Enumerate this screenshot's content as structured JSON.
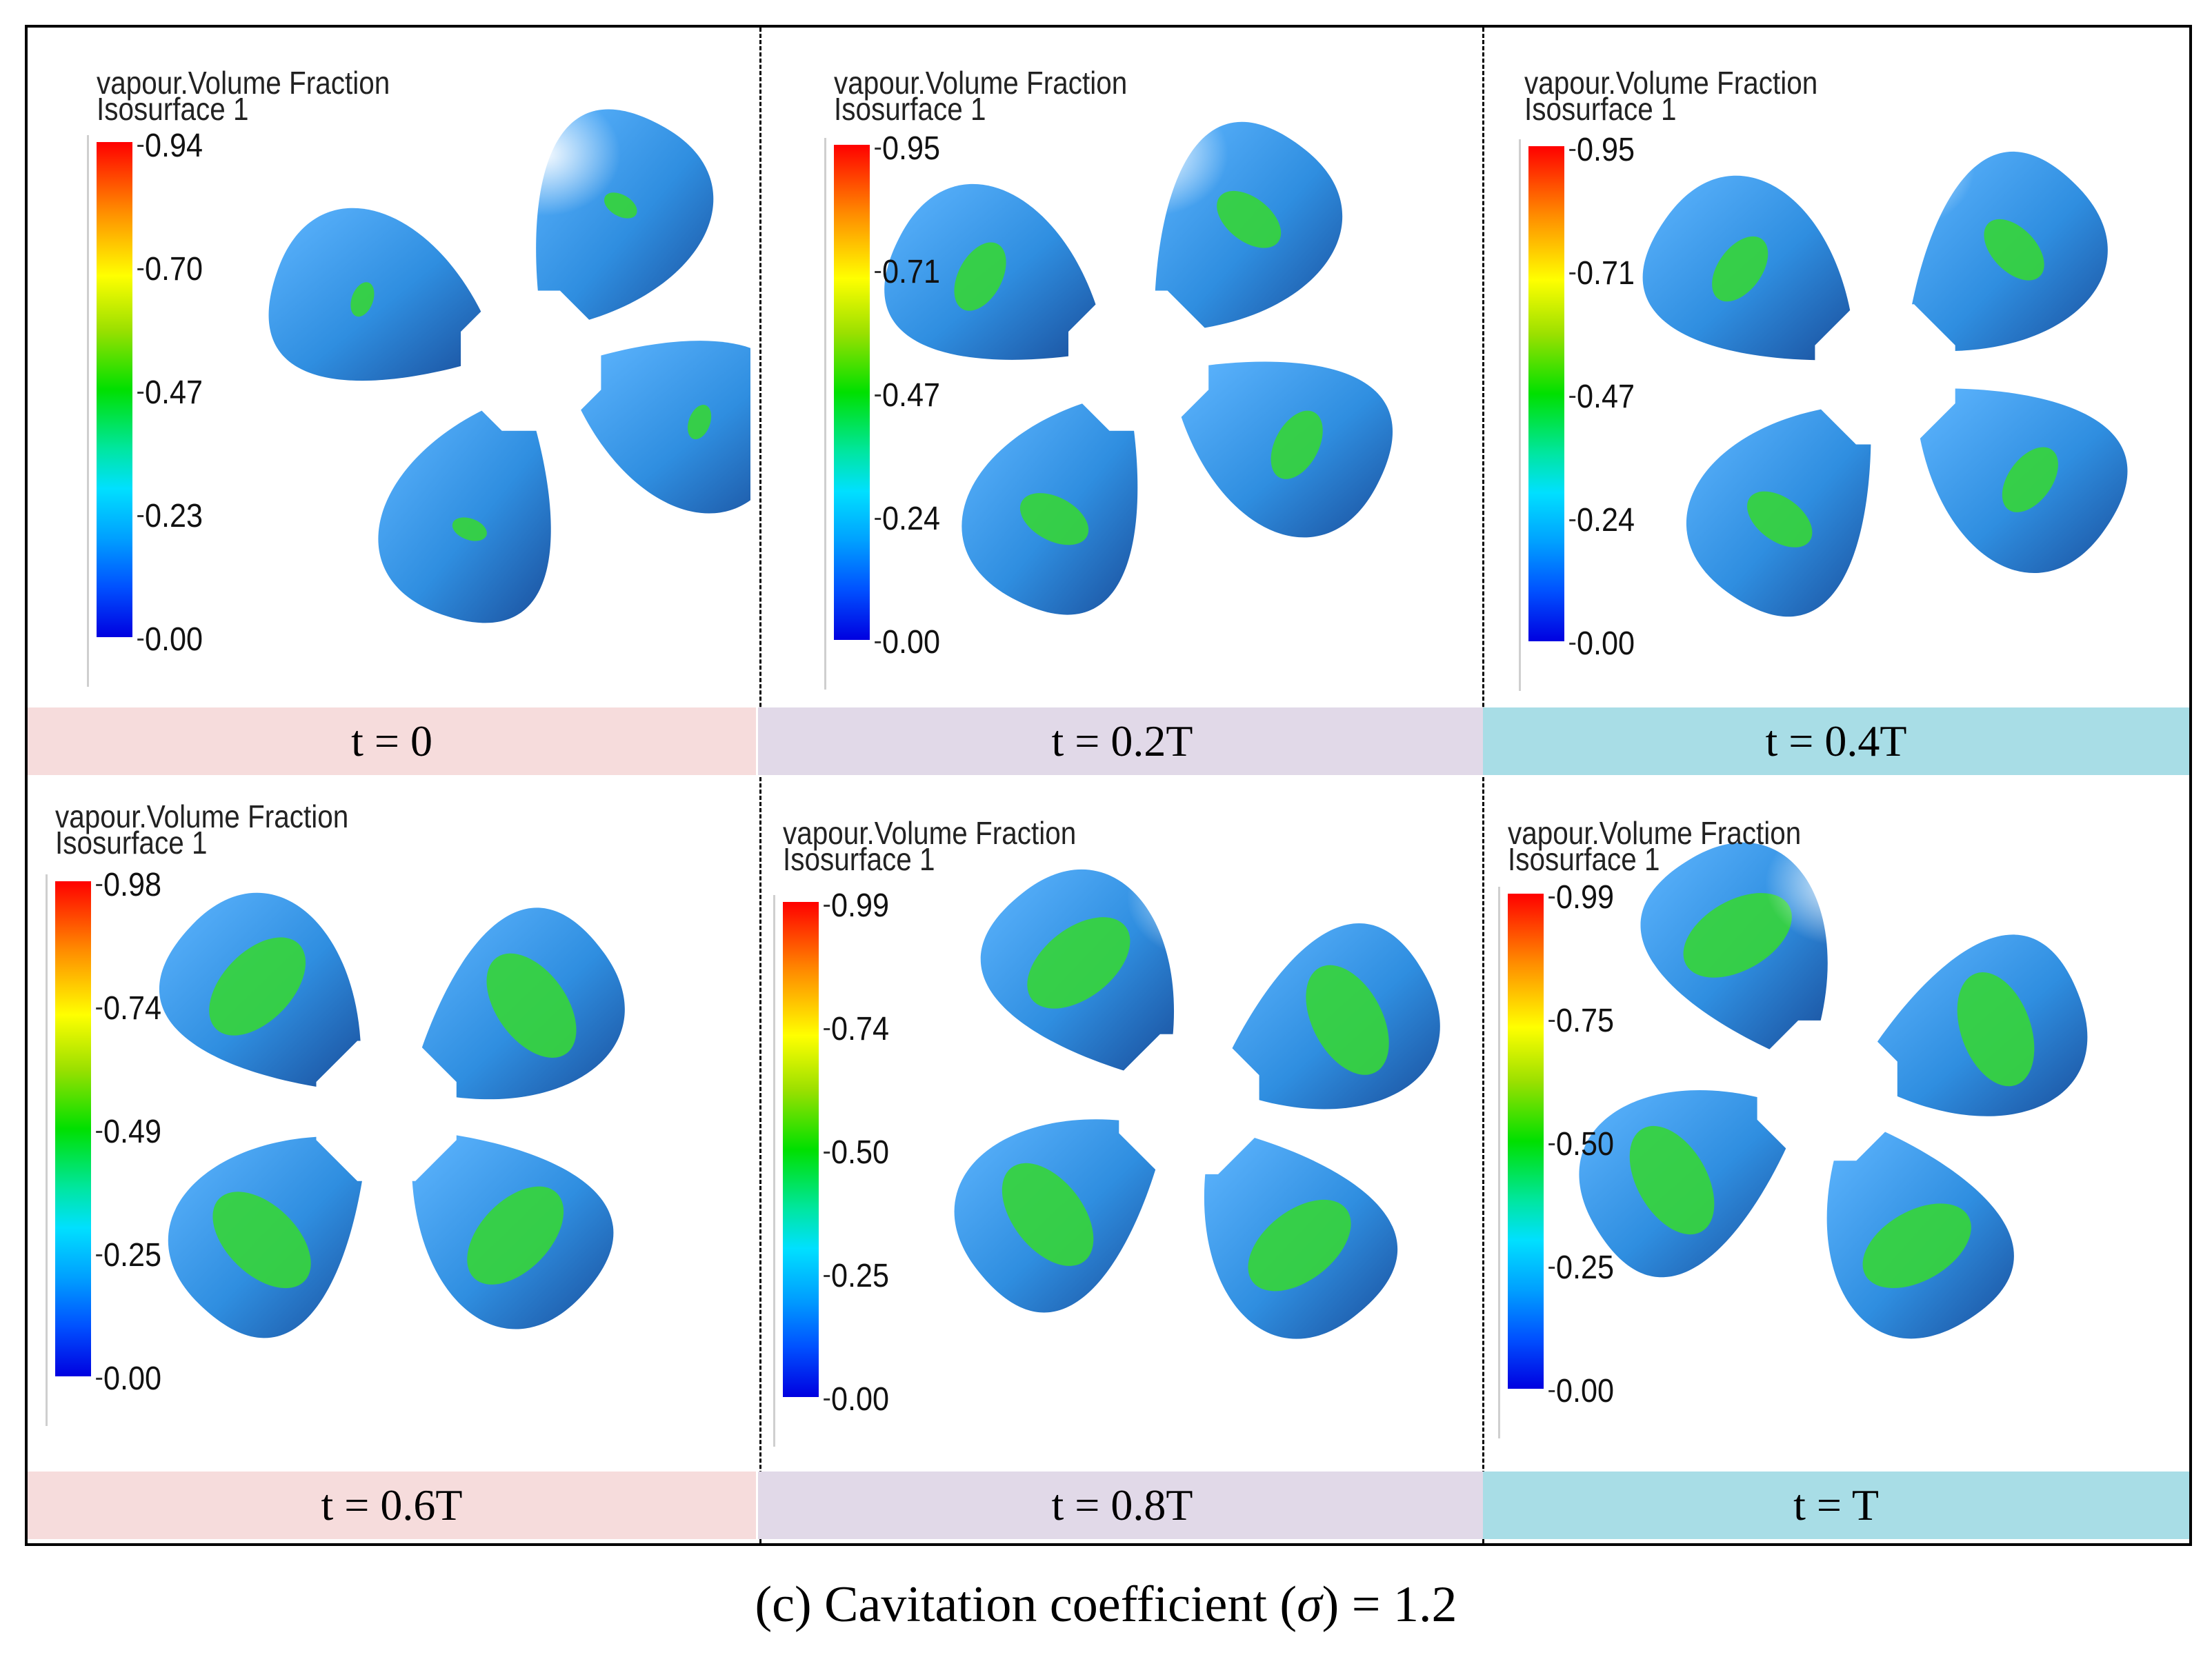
{
  "legend_title": "vapour.Volume Fraction",
  "legend_subtitle": "Isosurface 1",
  "colors": {
    "blade_blue": "#2f8ee0",
    "blade_dark": "#1a4f9c",
    "cavity_green": "#36d43c",
    "band_pink": "#f6dcdc",
    "band_lavender": "#e1d9e8",
    "band_cyan": "#a8dde6"
  },
  "panels": [
    {
      "time_label": "t = 0",
      "ticks": [
        "0.94",
        "0.70",
        "0.47",
        "0.23",
        "0.00"
      ],
      "cavitation": "low"
    },
    {
      "time_label": "t = 0.2T",
      "ticks": [
        "0.95",
        "0.71",
        "0.47",
        "0.24",
        "0.00"
      ],
      "cavitation": "moderate"
    },
    {
      "time_label": "t = 0.4T",
      "ticks": [
        "0.95",
        "0.71",
        "0.47",
        "0.24",
        "0.00"
      ],
      "cavitation": "moderate"
    },
    {
      "time_label": "t = 0.6T",
      "ticks": [
        "0.98",
        "0.74",
        "0.49",
        "0.25",
        "0.00"
      ],
      "cavitation": "high"
    },
    {
      "time_label": "t = 0.8T",
      "ticks": [
        "0.99",
        "0.74",
        "0.50",
        "0.25",
        "0.00"
      ],
      "cavitation": "high"
    },
    {
      "time_label": "t = T",
      "ticks": [
        "0.99",
        "0.75",
        "0.50",
        "0.25",
        "0.00"
      ],
      "cavitation": "high"
    }
  ],
  "caption": {
    "prefix": "(c) Cavitation coefficient (",
    "symbol": "σ",
    "suffix": ") = 1.2"
  }
}
